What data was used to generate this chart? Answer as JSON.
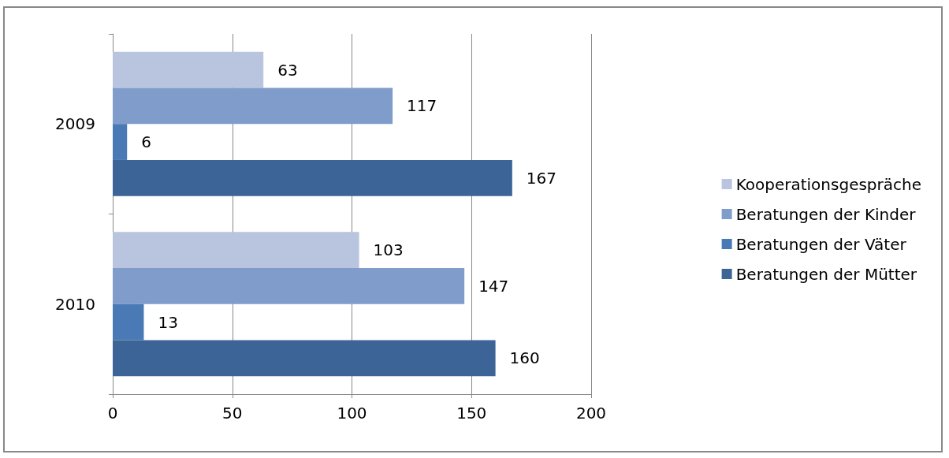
{
  "chart_data": {
    "type": "bar",
    "orientation": "horizontal",
    "categories": [
      "2009",
      "2010"
    ],
    "series": [
      {
        "name": "Kooperationsgespräche",
        "color": "#b9c5de",
        "values": [
          63,
          103
        ]
      },
      {
        "name": "Beratungen der Kinder",
        "color": "#7f9ccb",
        "values": [
          117,
          147
        ]
      },
      {
        "name": "Beratungen der Väter",
        "color": "#4a7ab5",
        "values": [
          6,
          13
        ]
      },
      {
        "name": "Beratungen der Mütter",
        "color": "#3c6496",
        "values": [
          167,
          160
        ]
      }
    ],
    "xlim": [
      0,
      200
    ],
    "xticks": [
      0,
      50,
      100,
      150,
      200
    ],
    "grid": "x",
    "legend": "right",
    "data_labels": true
  }
}
